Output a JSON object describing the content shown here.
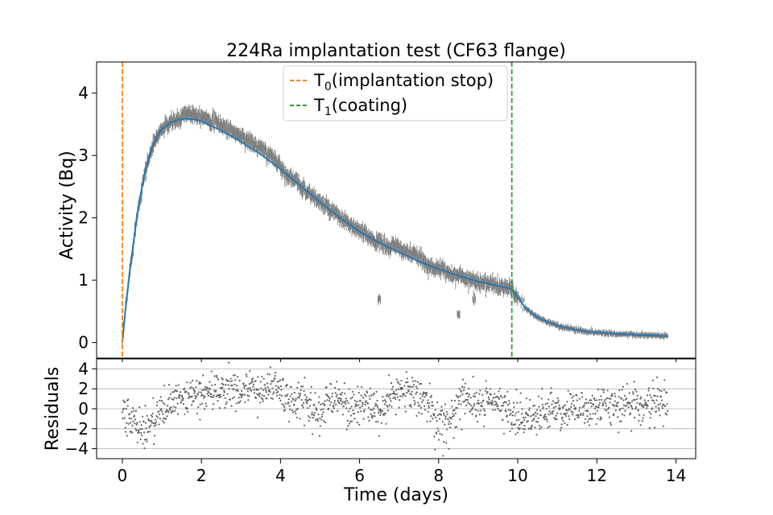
{
  "chart_data": [
    {
      "type": "line",
      "title": "224Ra implantation test (CF63 flange)",
      "xlabel": "",
      "ylabel": "Activity (Bq)",
      "xlim": [
        -0.65,
        14.5
      ],
      "ylim": [
        -0.25,
        4.5
      ],
      "xticks": [
        0,
        2,
        4,
        6,
        8,
        10,
        12,
        14
      ],
      "yticks": [
        0,
        1,
        2,
        3,
        4
      ],
      "legend": {
        "placement": "top-center",
        "entries": [
          {
            "label": "T",
            "sub": "0",
            "suffix": "(implantation stop)",
            "color": "#ff7f0e",
            "style": "dashed"
          },
          {
            "label": "T",
            "sub": "1",
            "suffix": "(coating)",
            "color": "#2ca02c",
            "style": "dashed"
          }
        ]
      },
      "vlines": [
        {
          "x": 0.0,
          "color": "#ff7f0e"
        },
        {
          "x": 9.85,
          "color": "#2ca02c"
        }
      ],
      "series": [
        {
          "kind": "fit",
          "color": "#1f77b4",
          "x": [
            0.0,
            0.1,
            0.2,
            0.3,
            0.4,
            0.5,
            0.6,
            0.7,
            0.8,
            0.9,
            1.0,
            1.2,
            1.4,
            1.6,
            1.8,
            2.0,
            2.5,
            3.0,
            3.5,
            4.0,
            4.5,
            5.0,
            5.5,
            6.0,
            6.5,
            7.0,
            7.5,
            8.0,
            8.5,
            9.0,
            9.5,
            9.85,
            10.0,
            10.2,
            10.5,
            11.0,
            11.5,
            12.0,
            12.5,
            13.0,
            13.5,
            13.8
          ],
          "y": [
            0.0,
            0.65,
            1.2,
            1.7,
            2.15,
            2.5,
            2.8,
            3.02,
            3.2,
            3.33,
            3.42,
            3.52,
            3.57,
            3.59,
            3.58,
            3.55,
            3.4,
            3.22,
            3.02,
            2.78,
            2.52,
            2.25,
            2.0,
            1.78,
            1.6,
            1.45,
            1.3,
            1.18,
            1.07,
            0.98,
            0.91,
            0.86,
            0.72,
            0.55,
            0.4,
            0.27,
            0.2,
            0.16,
            0.14,
            0.12,
            0.11,
            0.1
          ]
        },
        {
          "kind": "data",
          "color": "#808080",
          "note": "noisy measurements with vertical error bars scattered around the fit; outlier clusters near x=6.5 (~0.7), x=8.5 (~0.45), x=8.9 (~0.7)"
        }
      ]
    },
    {
      "type": "scatter",
      "xlabel": "Time (days)",
      "ylabel": "Residuals",
      "xlim": [
        -0.65,
        14.5
      ],
      "ylim": [
        -5,
        5
      ],
      "xticks": [
        0,
        2,
        4,
        6,
        8,
        10,
        12,
        14
      ],
      "yticks": [
        -4,
        -2,
        0,
        2,
        4
      ],
      "grid": "horizontal",
      "series": [
        {
          "kind": "residuals",
          "color": "#606060",
          "x": [
            0.0,
            0.3,
            0.6,
            0.9,
            1.2,
            1.5,
            2.0,
            2.5,
            3.0,
            3.5,
            3.9,
            4.2,
            4.6,
            5.0,
            5.4,
            5.8,
            6.2,
            6.6,
            7.0,
            7.4,
            7.8,
            8.2,
            8.6,
            9.0,
            9.4,
            9.8,
            10.2,
            10.8,
            11.4,
            12.0,
            12.6,
            13.2,
            13.8
          ],
          "y": [
            -0.5,
            -1.5,
            -2.0,
            -0.5,
            0.3,
            1.0,
            1.5,
            1.8,
            2.0,
            1.8,
            2.5,
            0.5,
            1.0,
            -0.5,
            1.5,
            0.0,
            0.8,
            -0.5,
            2.0,
            1.5,
            0.5,
            -1.5,
            1.8,
            0.5,
            1.0,
            -0.5,
            -1.0,
            -0.3,
            0.0,
            0.2,
            0.4,
            0.5,
            0.6
          ]
        }
      ]
    }
  ]
}
